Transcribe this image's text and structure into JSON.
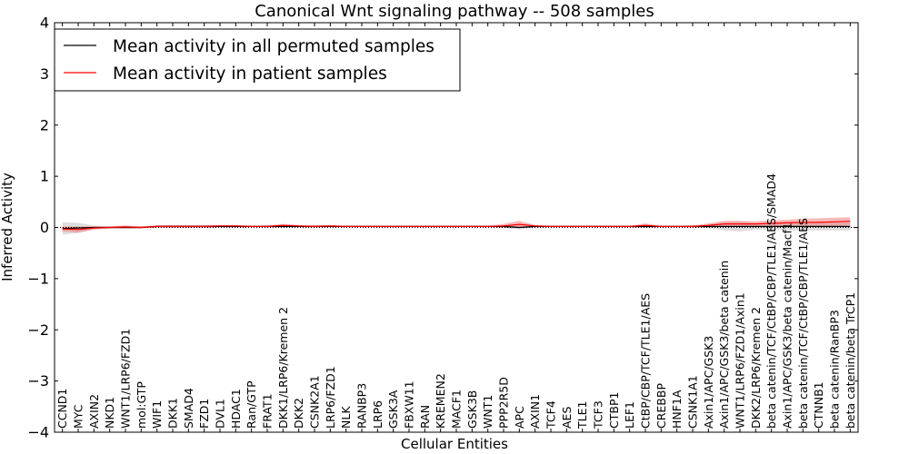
{
  "chart_data": {
    "type": "line",
    "title": "Canonical Wnt signaling pathway -- 508 samples",
    "xlabel": "Cellular Entities",
    "ylabel": "Inferred Activity",
    "ylim": [
      -4,
      4
    ],
    "yticks": [
      "−4",
      "−3",
      "−2",
      "−1",
      "0",
      "1",
      "2",
      "3",
      "4"
    ],
    "legend_position": "top-left",
    "reference_line": 0,
    "categories": [
      "CCND1",
      "MYC",
      "AXIN2",
      "NKD1",
      "WNT1/LRP6/FZD1",
      "mol:GTP",
      "WIF1",
      "DKK1",
      "SMAD4",
      "FZD1",
      "DVL1",
      "HDAC1",
      "Ran/GTP",
      "FRAT1",
      "DKK1/LRP6/Kremen 2",
      "DKK2",
      "CSNK2A1",
      "LRP6/FZD1",
      "NLK",
      "RANBP3",
      "LRP6",
      "GSK3A",
      "FBXW11",
      "RAN",
      "KREMEN2",
      "MACF1",
      "GSK3B",
      "WNT1",
      "PPP2R5D",
      "APC",
      "AXIN1",
      "TCF4",
      "AES",
      "TLE1",
      "TCF3",
      "CTBP1",
      "LEF1",
      "CtBP/CBP/TCF/TLE1/AES",
      "CREBBP",
      "HNF1A",
      "CSNK1A1",
      "Axin1/APC/GSK3",
      "Axin1/APC/GSK3/beta catenin",
      "WNT1/LRP6/FZD1/Axin1",
      "DKK2/LRP6/Kremen 2",
      "beta catenin/TCF/CtBP/CBP/TLE1/AES/SMAD4",
      "Axin1/APC/GSK3/beta catenin/Macf1",
      "beta catenin/TCF/CtBP/CBP/TLE1/AES",
      "CTNNB1",
      "beta catenin/RanBP3",
      "beta catenin/beta TrCP1"
    ],
    "series": [
      {
        "name": "Mean activity in all permuted samples",
        "color": "#000000",
        "band_color": "#a0a0a0",
        "values": [
          -0.02,
          -0.01,
          0.0,
          0.0,
          0.0,
          0.0,
          0.02,
          0.02,
          0.02,
          0.02,
          0.02,
          0.02,
          0.02,
          0.02,
          0.02,
          0.02,
          0.02,
          0.02,
          0.02,
          0.02,
          0.02,
          0.02,
          0.02,
          0.02,
          0.02,
          0.02,
          0.02,
          0.02,
          0.02,
          0.0,
          0.02,
          0.02,
          0.02,
          0.02,
          0.02,
          0.02,
          0.02,
          0.02,
          0.02,
          0.02,
          0.02,
          0.02,
          0.02,
          0.02,
          0.02,
          0.02,
          0.02,
          0.02,
          0.02,
          0.02,
          0.02
        ],
        "band": [
          0.12,
          0.1,
          0.04,
          0.02,
          0.02,
          0.02,
          0.02,
          0.03,
          0.03,
          0.03,
          0.02,
          0.02,
          0.01,
          0.01,
          0.02,
          0.01,
          0.01,
          0.01,
          0.01,
          0.01,
          0.01,
          0.01,
          0.01,
          0.01,
          0.01,
          0.01,
          0.01,
          0.01,
          0.02,
          0.04,
          0.02,
          0.01,
          0.01,
          0.01,
          0.01,
          0.01,
          0.01,
          0.03,
          0.01,
          0.01,
          0.01,
          0.03,
          0.08,
          0.1,
          0.06,
          0.06,
          0.08,
          0.08,
          0.08,
          0.08,
          0.08
        ]
      },
      {
        "name": "Mean activity in patient samples",
        "color": "#ff0000",
        "band_color": "#f08080",
        "values": [
          -0.03,
          -0.04,
          -0.01,
          0.0,
          0.01,
          0.0,
          0.02,
          0.02,
          0.02,
          0.02,
          0.03,
          0.03,
          0.02,
          0.02,
          0.04,
          0.03,
          0.02,
          0.03,
          0.02,
          0.02,
          0.02,
          0.02,
          0.02,
          0.02,
          0.02,
          0.02,
          0.02,
          0.02,
          0.03,
          0.06,
          0.03,
          0.02,
          0.02,
          0.02,
          0.02,
          0.02,
          0.02,
          0.04,
          0.02,
          0.02,
          0.02,
          0.04,
          0.07,
          0.07,
          0.07,
          0.08,
          0.09,
          0.1,
          0.1,
          0.11,
          0.12
        ],
        "band": [
          0.05,
          0.06,
          0.03,
          0.02,
          0.03,
          0.02,
          0.02,
          0.02,
          0.02,
          0.02,
          0.02,
          0.02,
          0.01,
          0.02,
          0.03,
          0.02,
          0.02,
          0.02,
          0.01,
          0.01,
          0.01,
          0.01,
          0.01,
          0.01,
          0.01,
          0.01,
          0.01,
          0.01,
          0.04,
          0.07,
          0.02,
          0.01,
          0.01,
          0.01,
          0.01,
          0.01,
          0.01,
          0.04,
          0.01,
          0.01,
          0.02,
          0.04,
          0.06,
          0.06,
          0.05,
          0.06,
          0.06,
          0.07,
          0.08,
          0.08,
          0.08
        ]
      }
    ]
  }
}
